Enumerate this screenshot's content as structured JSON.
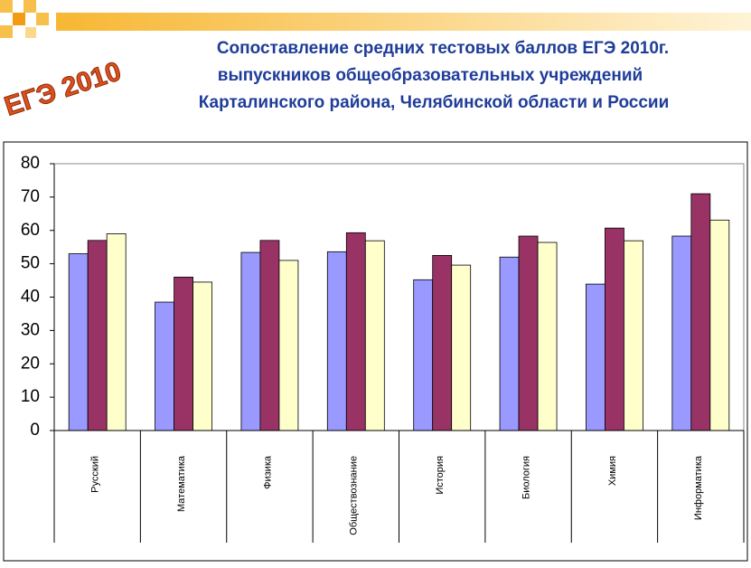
{
  "logo": "ЕГЭ 2010",
  "chart_data": {
    "type": "bar",
    "title": [
      "Сопоставление средних тестовых баллов ЕГЭ 2010г.",
      "выпускников общеобразовательных учреждений",
      "Карталинского района, Челябинской области и России"
    ],
    "categories": [
      "Русский",
      "Математика",
      "Физика",
      "Обществознание",
      "История",
      "Биология",
      "Химия",
      "Информатика"
    ],
    "series": [
      {
        "color": "#9999ff",
        "values": [
          53,
          38.5,
          53.4,
          53.6,
          45.2,
          52,
          43.9,
          58.3
        ]
      },
      {
        "color": "#993366",
        "values": [
          57,
          46,
          57,
          59.3,
          52.5,
          58.3,
          60.7,
          71
        ]
      },
      {
        "color": "#ffffcc",
        "values": [
          59,
          44.5,
          51,
          56.9,
          49.6,
          56.4,
          56.9,
          63.1
        ]
      }
    ],
    "ylim": [
      0,
      80
    ],
    "yticks": [
      0,
      10,
      20,
      30,
      40,
      50,
      60,
      70,
      80
    ],
    "grid": false
  }
}
